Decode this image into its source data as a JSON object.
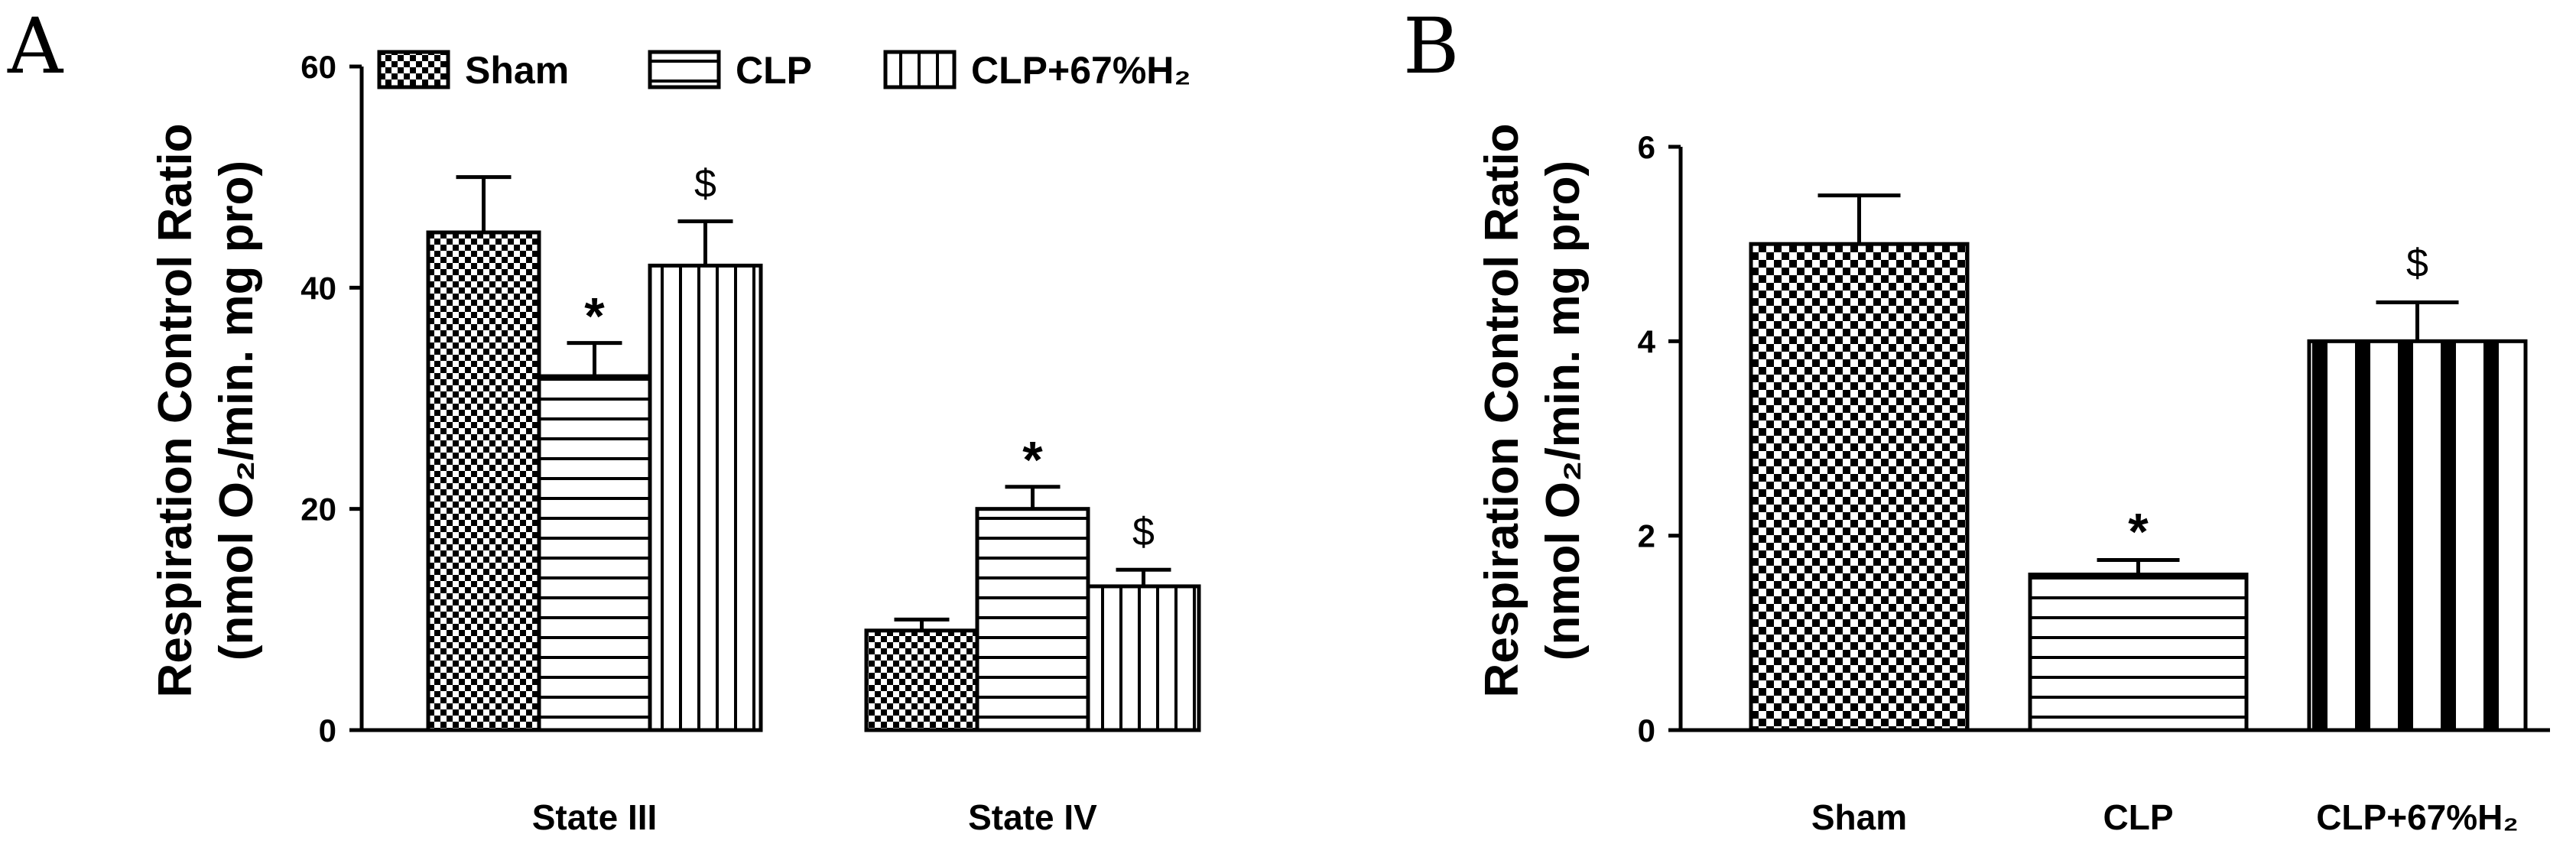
{
  "chart_data": [
    {
      "type": "bar",
      "panel": "A",
      "ylabel": "Respiration Control Ratio",
      "ylabel_unit": "(nmol O₂/min. mg pro)",
      "ylim": [
        0,
        60
      ],
      "yticks": [
        "0",
        "20",
        "40",
        "60"
      ],
      "categories": [
        "State III",
        "State IV"
      ],
      "legend_position": "top",
      "series": [
        {
          "name": "Sham",
          "pattern": "checker",
          "values": [
            45,
            9
          ],
          "errors": [
            5,
            1
          ],
          "marks": [
            "",
            ""
          ]
        },
        {
          "name": "CLP",
          "pattern": "horizontal",
          "values": [
            32,
            20
          ],
          "errors": [
            3,
            2
          ],
          "marks": [
            "*",
            "*"
          ]
        },
        {
          "name": "CLP+67%H₂",
          "pattern": "vertical",
          "values": [
            42,
            13
          ],
          "errors": [
            4,
            1.5
          ],
          "marks": [
            "$",
            "$"
          ]
        }
      ]
    },
    {
      "type": "bar",
      "panel": "B",
      "ylabel": "Respiration Control Ratio",
      "ylabel_unit": "(nmol O₂/min. mg pro)",
      "ylim": [
        0,
        6
      ],
      "yticks": [
        "0",
        "2",
        "4",
        "6"
      ],
      "categories": [
        "Sham",
        "CLP",
        "CLP+67%H₂"
      ],
      "patterns": [
        "checker",
        "horizontal",
        "vertical"
      ],
      "values": [
        5.0,
        1.6,
        4.0
      ],
      "errors": [
        0.5,
        0.15,
        0.4
      ],
      "marks": [
        "",
        "*",
        "$"
      ]
    }
  ]
}
